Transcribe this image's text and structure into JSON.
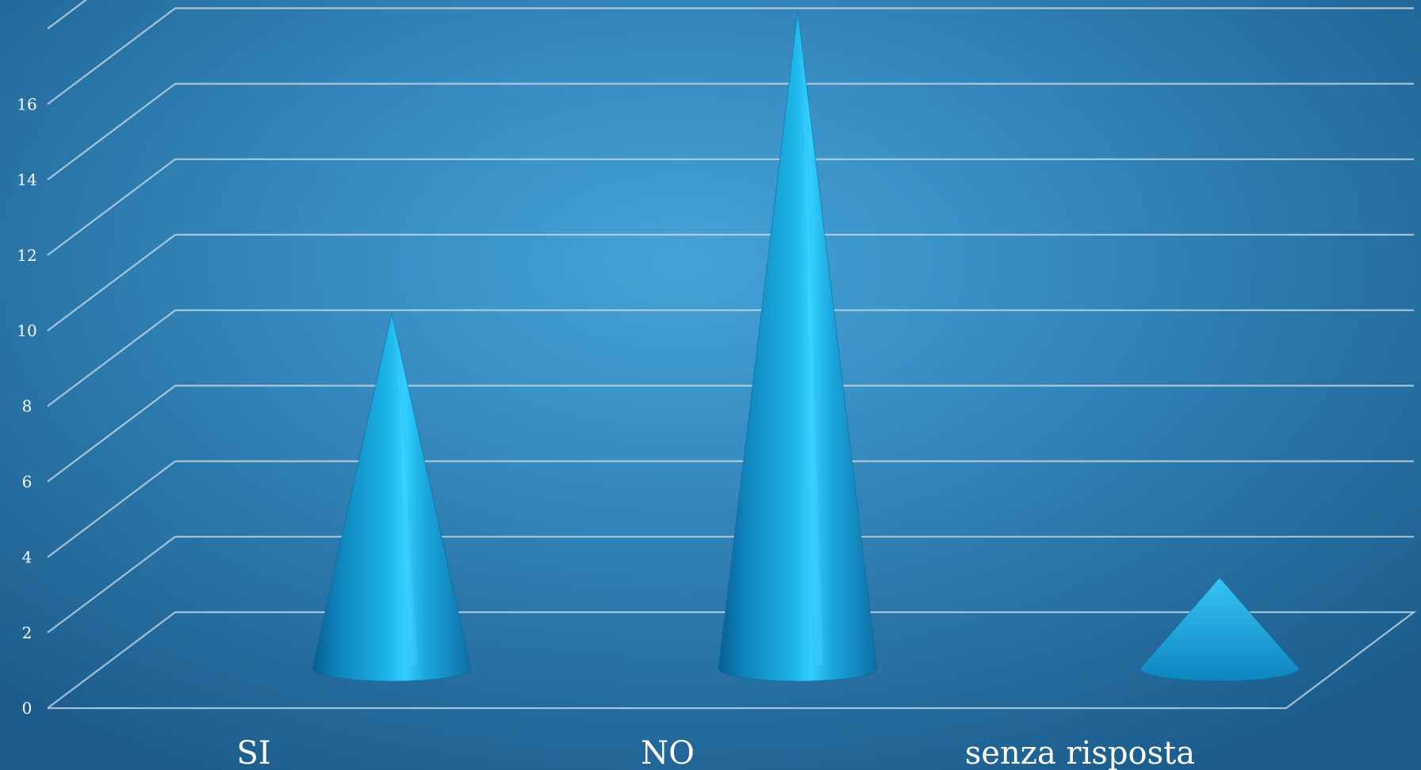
{
  "chart_data": {
    "type": "bar",
    "shape": "cone",
    "style": "3d",
    "categories": [
      "SI",
      "NO",
      "senza risposta"
    ],
    "values": [
      8,
      16,
      1
    ],
    "title": "",
    "xlabel": "",
    "ylabel": "",
    "ylim": [
      0,
      18
    ],
    "yticks": [
      0,
      2,
      4,
      6,
      8,
      10,
      12,
      14,
      16
    ],
    "ytick_labels": [
      "0",
      "2",
      "4",
      "6",
      "8",
      "10",
      "12",
      "14",
      "16"
    ],
    "grid": true,
    "legend": "none",
    "colors": {
      "bar": "#1aa6dc",
      "bar_highlight": "#32ceff",
      "bar_shadow": "#075e91",
      "grid": "#c4d8e4",
      "text": "#ffffff",
      "background_center": "#46a2d6",
      "background_edge": "#1c5d8d"
    }
  }
}
